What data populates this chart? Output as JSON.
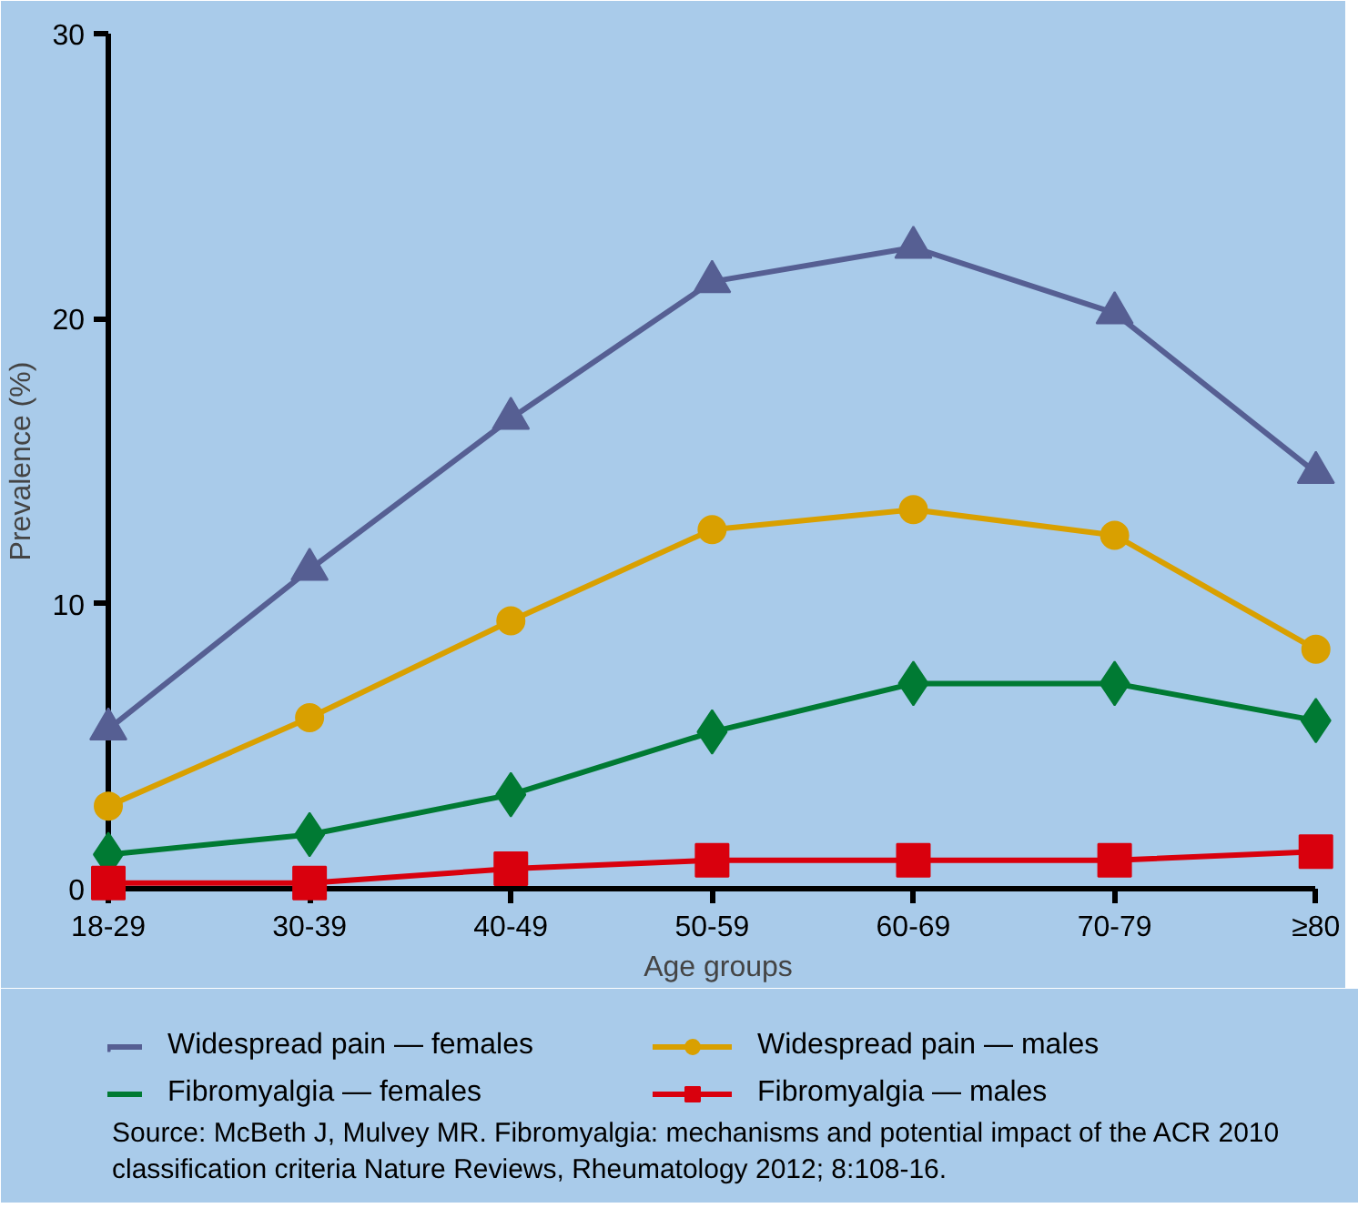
{
  "chart_data": {
    "type": "line",
    "xlabel": "Age groups",
    "ylabel": "Prevalence (%)",
    "categories": [
      "18-29",
      "30-39",
      "40-49",
      "50-59",
      "60-69",
      "70-79",
      "≥80"
    ],
    "ylim": [
      0,
      30
    ],
    "yticks": [
      0,
      10,
      20,
      30
    ],
    "grid": false,
    "legend": "bottom",
    "series": [
      {
        "name": "Widespread pain — females",
        "color": "#565f93",
        "marker": "triangle",
        "values": [
          5.6,
          11.2,
          16.5,
          21.3,
          22.5,
          20.2,
          14.6
        ]
      },
      {
        "name": "Widespread pain — males",
        "color": "#d9a000",
        "marker": "circle",
        "values": [
          2.9,
          6.0,
          9.4,
          12.6,
          13.3,
          12.4,
          8.4
        ]
      },
      {
        "name": "Fibromyalgia — females",
        "color": "#007a33",
        "marker": "diamond",
        "values": [
          1.2,
          1.9,
          3.3,
          5.5,
          7.2,
          7.2,
          5.9
        ]
      },
      {
        "name": "Fibromyalgia — males",
        "color": "#d9000d",
        "marker": "square",
        "values": [
          0.2,
          0.2,
          0.7,
          1.0,
          1.0,
          1.0,
          1.3
        ]
      }
    ],
    "annotations": [
      "Source: McBeth J, Mulvey MR. Fibromyalgia: mechanisms and potential impact of the ACR 2010 classification criteria Nature Reviews, Rheumatology 2012; 8:108-16."
    ]
  }
}
